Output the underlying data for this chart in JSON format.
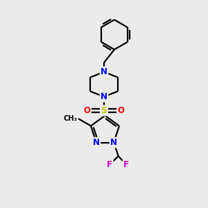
{
  "bg_color": "#ebebeb",
  "bond_color": "#000000",
  "N_color": "#0000ff",
  "O_color": "#ff0000",
  "S_color": "#cccc00",
  "F_color": "#cc00cc",
  "line_width": 1.6,
  "font_size_atom": 8.5,
  "figsize": [
    3.0,
    3.0
  ],
  "dpi": 100,
  "xlim": [
    0,
    10
  ],
  "ylim": [
    0,
    10
  ]
}
